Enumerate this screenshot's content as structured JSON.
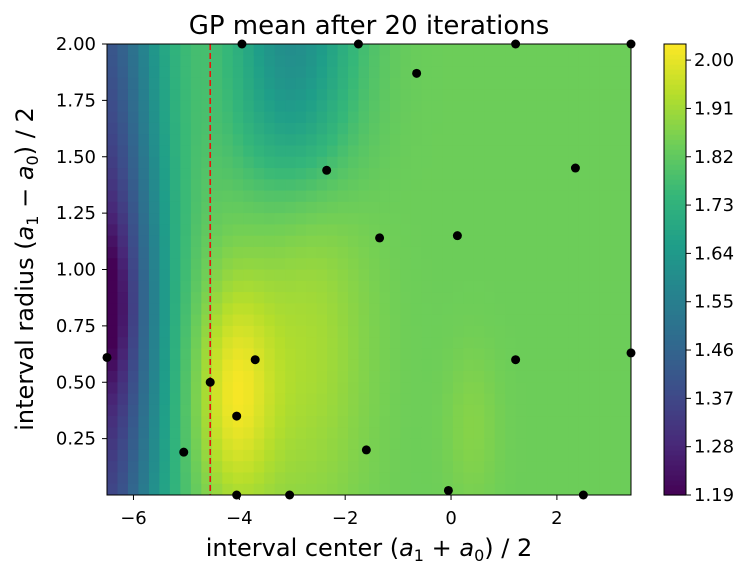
{
  "chart_data": {
    "type": "heatmap",
    "title": "GP mean after 20 iterations",
    "xlabel": "interval center (a1 + a0) / 2",
    "xlabel_parts": [
      "interval center (",
      "a",
      "1",
      " + ",
      "a",
      "0",
      ") / 2"
    ],
    "ylabel": "interval radius (a1 − a0) / 2",
    "ylabel_parts": [
      "interval radius (",
      "a",
      "1",
      " − ",
      "a",
      "0",
      ") / 2"
    ],
    "xlim": [
      -6.5,
      3.4
    ],
    "ylim": [
      0.0,
      2.0
    ],
    "x_ticks": [
      -6,
      -4,
      -2,
      0,
      2
    ],
    "x_tick_labels": [
      "−6",
      "−4",
      "−2",
      "0",
      "2"
    ],
    "y_ticks": [
      0.25,
      0.5,
      0.75,
      1.0,
      1.25,
      1.5,
      1.75,
      2.0
    ],
    "y_tick_labels": [
      "0.25",
      "0.50",
      "0.75",
      "1.00",
      "1.25",
      "1.50",
      "1.75",
      "2.00"
    ],
    "colormap": "viridis",
    "colorbar": {
      "range": [
        1.19,
        2.03
      ],
      "ticks": [
        1.19,
        1.28,
        1.37,
        1.46,
        1.55,
        1.64,
        1.73,
        1.82,
        1.91,
        2.0
      ],
      "tick_labels": [
        "1.19",
        "1.28",
        "1.37",
        "1.46",
        "1.55",
        "1.64",
        "1.73",
        "1.82",
        "1.91",
        "2.00"
      ]
    },
    "vertical_line": {
      "x": -4.55,
      "color": "#e8160c",
      "style": "dashed"
    },
    "points": [
      {
        "x": -6.5,
        "y": 0.61
      },
      {
        "x": -5.05,
        "y": 0.19
      },
      {
        "x": -4.55,
        "y": 0.5
      },
      {
        "x": -4.05,
        "y": 0.35
      },
      {
        "x": -4.05,
        "y": 0.0
      },
      {
        "x": -3.7,
        "y": 0.6
      },
      {
        "x": -3.05,
        "y": 0.0
      },
      {
        "x": -3.95,
        "y": 2.0
      },
      {
        "x": -2.35,
        "y": 1.44
      },
      {
        "x": -1.75,
        "y": 2.0
      },
      {
        "x": -1.6,
        "y": 0.2
      },
      {
        "x": -1.35,
        "y": 1.14
      },
      {
        "x": -0.65,
        "y": 1.87
      },
      {
        "x": -0.05,
        "y": 0.02
      },
      {
        "x": 0.12,
        "y": 1.15
      },
      {
        "x": 1.22,
        "y": 2.0
      },
      {
        "x": 1.22,
        "y": 0.6
      },
      {
        "x": 2.35,
        "y": 1.45
      },
      {
        "x": 2.5,
        "y": 0.0
      },
      {
        "x": 3.4,
        "y": 2.0
      },
      {
        "x": 3.4,
        "y": 0.63
      }
    ],
    "point_color": "#000000"
  }
}
